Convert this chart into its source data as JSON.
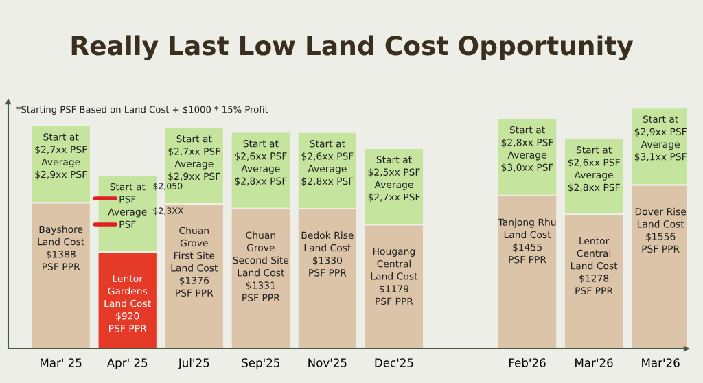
{
  "chart_data": {
    "type": "bar",
    "stacked": true,
    "title": "Really Last Low Land Cost Opportunity",
    "categories": [
      "Mar' 25",
      "Apr' 25",
      "Jul'25",
      "Sep'25",
      "Nov'25",
      "Dec'25",
      null,
      "Feb'26",
      "Mar'26",
      "Mar'26"
    ],
    "series": [
      {
        "color": "#dcc4a8",
        "colors": [
          null,
          "#e53a28",
          null,
          null,
          null,
          null,
          null,
          null,
          null,
          null
        ],
        "values": [
          1388,
          920,
          1376,
          1331,
          1330,
          1179,
          null,
          1455,
          1278,
          1556
        ],
        "value_labels": [
          "Bayshore\nLand Cost\n$1388\nPSF PPR",
          "Lentor\nGardens\nLand Cost\n$920\nPSF PPR",
          "Chuan\nGrove\nFirst Site\nLand Cost\n$1376\nPSF PPR",
          "Chuan\nGrove\nSecond Site\nLand Cost\n$1331\nPSF PPR",
          "Bedok Rise\nLand Cost\n$1330\nPSF PPR",
          "Hougang\nCentral\nLand Cost\n$1179\nPSF PPR",
          null,
          "Tanjong Rhu\nLand Cost\n$1455\nPSF PPR",
          "Lentor\nCentral\nLand Cost\n$1278\nPSF PPR",
          "Dover Rise\nLand Cost\n$1556\nPSF PPR"
        ]
      },
      {
        "color": "#c5e49e",
        "values": [
          732,
          726,
          726,
          726,
          726,
          726,
          null,
          732,
          719,
          732
        ],
        "value_labels": [
          "Start at\n$2,7xx PSF\nAverage\n$2,9xx PSF",
          "Start at\nPSF\nAverage\nPSF",
          "Start at\n$2,7xx PSF\nAverage\n$2,9xx PSF",
          "Start at\n$2,6xx PSF\nAverage\n$2,8xx PSF",
          "Start at\n$2,6xx PSF\nAverage\n$2,8xx PSF",
          "Start at\n$2,5xx PSF\nAverage\n$2,7xx PSF",
          null,
          "Start at\n$2,8xx PSF\nAverage\n$3,0xx PSF",
          "Start at\n$2,6xx PSF\nAverage\n$2,8xx PSF",
          "Start at\n$2,9xx PSF\nAverage\n$3,1xx PSF"
        ]
      }
    ],
    "annotations": [
      "*Starting PSF Based on Land Cost + $1000 * 15% Profit",
      "$2,050",
      "$2,3XX"
    ]
  }
}
